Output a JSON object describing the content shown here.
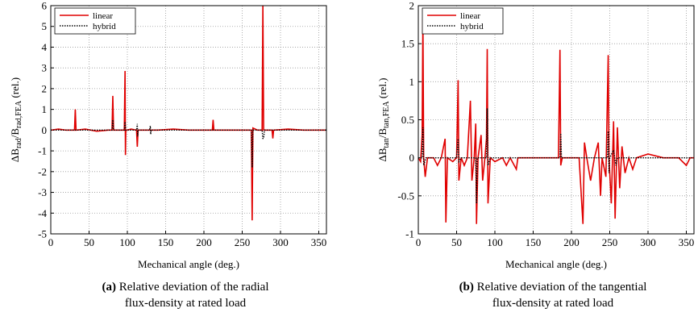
{
  "chart_data": [
    {
      "type": "line",
      "xlabel": "Mechanical angle (deg.)",
      "ylabel": [
        "ΔB",
        "rad",
        "/B",
        "rad,FEA",
        " (rel.)"
      ],
      "caption_label": "(a)",
      "caption": [
        "Relative deviation of the radial",
        "flux-density at rated load"
      ],
      "xlim": [
        0,
        360
      ],
      "xticks": [
        0,
        50,
        100,
        150,
        200,
        250,
        300,
        350
      ],
      "ylim": [
        -5,
        6
      ],
      "yticks": [
        -5,
        -4,
        -3,
        -2,
        -1,
        0,
        1,
        2,
        3,
        4,
        5,
        6
      ],
      "grid": true,
      "legend": "upper left",
      "series": [
        {
          "name": "linear",
          "color": "#e00000",
          "style": "solid",
          "x": [
            0,
            10,
            20,
            31,
            32,
            33,
            45,
            60,
            75,
            80,
            81,
            82,
            90,
            96,
            97,
            97.5,
            98,
            99,
            105,
            112,
            113,
            114,
            125,
            140,
            160,
            180,
            200,
            211,
            212,
            213,
            230,
            250,
            262,
            263,
            264,
            270,
            276,
            277,
            278,
            289,
            290,
            291,
            310,
            330,
            360
          ],
          "values": [
            0,
            0.05,
            0,
            0,
            1.0,
            0,
            0.05,
            -0.05,
            0,
            0,
            1.65,
            0,
            0,
            0,
            2.85,
            -1.2,
            0,
            0,
            0.05,
            0,
            -0.8,
            0,
            0,
            0,
            0.05,
            0,
            0,
            0,
            0.5,
            0,
            0,
            0,
            0,
            -4.35,
            0.1,
            0,
            0,
            6,
            0,
            0,
            -0.4,
            0,
            0.05,
            0,
            0
          ]
        },
        {
          "name": "hybrid",
          "color": "#000000",
          "style": "dotted",
          "x": [
            0,
            80,
            81,
            82,
            96,
            97,
            98,
            112,
            113,
            113.5,
            114,
            129,
            130,
            130.5,
            131,
            200,
            262,
            263,
            264,
            276,
            277,
            278,
            279,
            360
          ],
          "values": [
            0,
            0,
            0.5,
            0,
            0,
            0.4,
            0,
            0,
            0.3,
            -0.3,
            0,
            0,
            0.2,
            -0.2,
            0,
            0,
            0,
            -1.8,
            0,
            0,
            -0.4,
            -0.4,
            0,
            0
          ]
        }
      ]
    },
    {
      "type": "line",
      "xlabel": "Mechanical angle (deg.)",
      "ylabel": [
        "ΔB",
        "tan",
        "/B",
        "tan,FEA",
        " (rel.)"
      ],
      "caption_label": "(b)",
      "caption": [
        "Relative deviation of the tangential",
        "flux-density at rated load"
      ],
      "xlim": [
        0,
        360
      ],
      "xticks": [
        0,
        50,
        100,
        150,
        200,
        250,
        300,
        350
      ],
      "ylim": [
        -1,
        2
      ],
      "yticks": [
        -1,
        -0.5,
        0,
        0.5,
        1,
        1.5,
        2
      ],
      "grid": true,
      "legend": "upper left",
      "series": [
        {
          "name": "linear",
          "color": "#e00000",
          "style": "solid",
          "x": [
            0,
            3,
            5,
            6,
            7,
            9,
            12,
            20,
            25,
            30,
            35,
            36,
            38,
            45,
            50,
            52,
            53,
            56,
            60,
            64,
            68,
            70,
            73,
            75,
            76,
            78,
            82,
            84,
            87,
            89,
            90,
            91,
            94,
            100,
            110,
            115,
            120,
            128,
            130,
            150,
            170,
            183,
            185,
            186,
            188,
            200,
            210,
            215,
            217,
            220,
            225,
            230,
            235,
            238,
            240,
            245,
            248,
            249,
            252,
            255,
            257,
            260,
            263,
            266,
            270,
            275,
            280,
            285,
            300,
            320,
            340,
            350,
            355,
            360
          ],
          "values": [
            0,
            -0.05,
            0.3,
            1.85,
            0,
            -0.25,
            0,
            0,
            -0.1,
            0,
            0.25,
            -0.85,
            0,
            -0.05,
            0,
            1.02,
            -0.3,
            0,
            -0.1,
            0,
            0.75,
            -0.3,
            0,
            0.45,
            -0.87,
            0,
            0.3,
            -0.3,
            0,
            0.25,
            1.43,
            -0.6,
            0,
            -0.05,
            0,
            -0.1,
            0,
            -0.15,
            0,
            0,
            0,
            0,
            1.42,
            -0.1,
            0,
            0,
            0,
            -0.87,
            0.2,
            0,
            -0.3,
            0,
            0.2,
            -0.5,
            0,
            -0.25,
            1.35,
            0,
            -0.6,
            0.48,
            -0.8,
            0.4,
            -0.4,
            0.15,
            -0.2,
            0,
            -0.15,
            0,
            0.05,
            0,
            0,
            -0.1,
            0,
            0
          ]
        },
        {
          "name": "hybrid",
          "color": "#000000",
          "style": "dotted",
          "x": [
            0,
            5,
            6,
            7,
            10,
            50,
            52,
            53,
            56,
            75,
            76,
            77,
            89,
            90,
            91,
            94,
            185,
            186,
            187,
            247,
            248,
            249,
            250,
            255,
            258,
            260,
            360
          ],
          "values": [
            0,
            0,
            0.4,
            -0.1,
            0,
            0,
            0.25,
            -0.05,
            0,
            0,
            -0.6,
            0,
            0,
            0.65,
            -0.1,
            0,
            0,
            0.32,
            0,
            0,
            0.35,
            -0.2,
            0,
            0.1,
            -0.1,
            0,
            0
          ]
        }
      ]
    }
  ]
}
